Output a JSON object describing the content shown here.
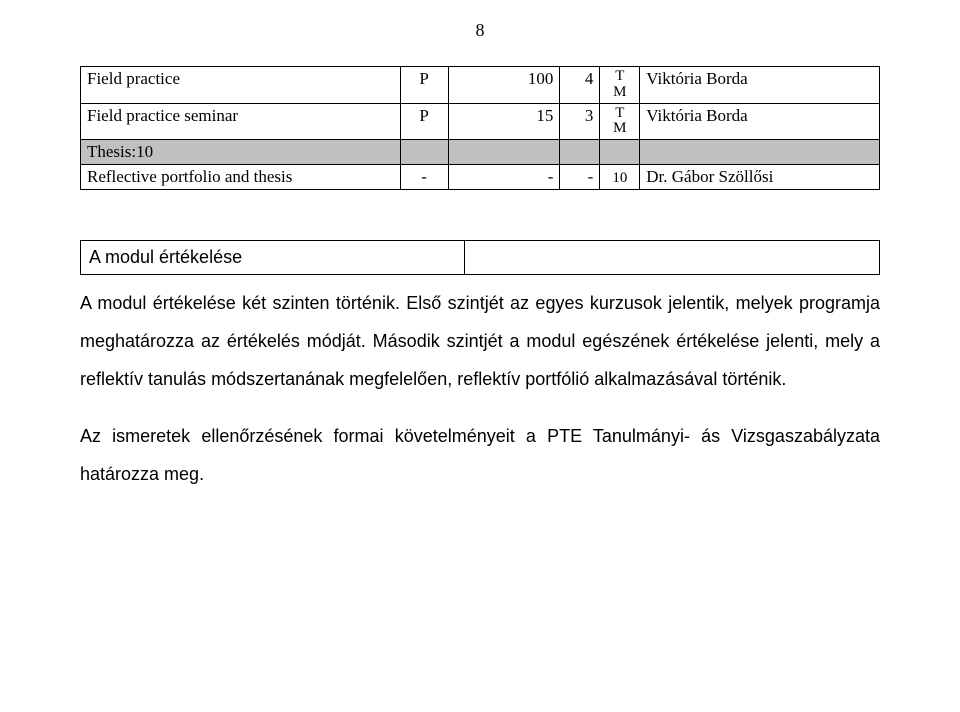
{
  "page_number": "8",
  "table": {
    "rows": [
      {
        "name": "Field practice",
        "type": "P",
        "hours": "100",
        "credits": "4",
        "tm_top": "T",
        "tm_bot": "M",
        "person": "Viktória Borda",
        "shaded": false
      },
      {
        "name": "Field practice seminar",
        "type": "P",
        "hours": "15",
        "credits": "3",
        "tm_top": "T",
        "tm_bot": "M",
        "person": "Viktória Borda",
        "shaded": false
      },
      {
        "name": "Thesis:10",
        "type": "",
        "hours": "",
        "credits": "",
        "tm_top": "",
        "tm_bot": "",
        "person": "",
        "shaded": true
      },
      {
        "name": "Reflective portfolio and thesis",
        "type": "-",
        "hours": "-",
        "credits": "-",
        "tm_top": "",
        "tm_bot": "10",
        "person": "Dr. Gábor Szöllősi",
        "shaded": false
      }
    ]
  },
  "eval": {
    "heading": "A modul értékelése"
  },
  "para1": "A modul értékelése két szinten történik. Első szintjét az egyes kurzusok jelentik, melyek programja meghatározza az értékelés módját. Második szintjét a modul egészének értékelése jelenti, mely a reflektív tanulás módszertanának megfelelően, reflektív portfólió alkalmazásával történik.",
  "para2": "Az ismeretek ellenőrzésének formai követelményeit a PTE Tanulmányi- ás Vizsgaszabályzata határozza meg."
}
